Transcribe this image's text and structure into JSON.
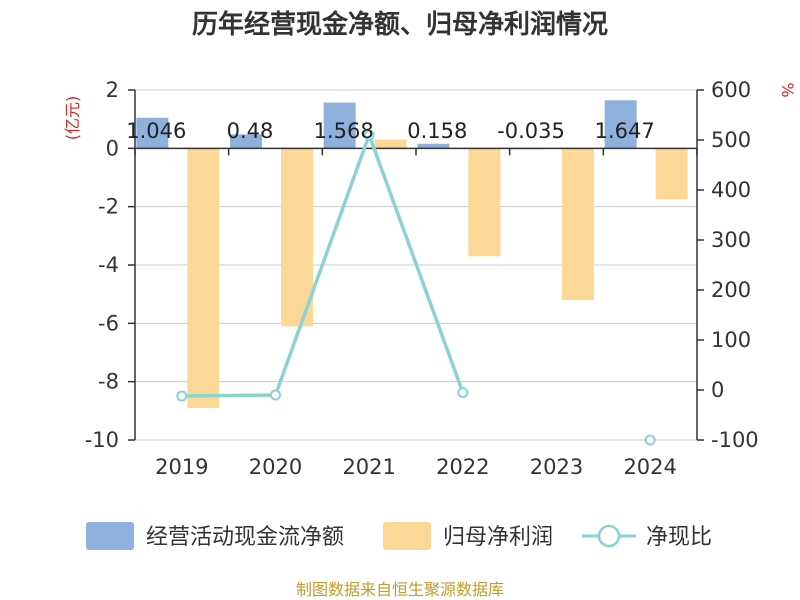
{
  "title": "历年经营现金净额、归母净利润情况",
  "source": "制图数据来自恒生聚源数据库",
  "chart_data": {
    "type": "bar",
    "categories": [
      "2019",
      "2020",
      "2021",
      "2022",
      "2023",
      "2024"
    ],
    "series": [
      {
        "name": "经营活动现金流净额",
        "axis": "left",
        "kind": "bar",
        "color": "#8eb0dd",
        "values": [
          1.046,
          0.48,
          1.568,
          0.158,
          -0.035,
          1.647
        ],
        "labels": [
          "1.046",
          "0.48",
          "1.568",
          "0.158",
          "-0.035",
          "1.647"
        ]
      },
      {
        "name": "归母净利润",
        "axis": "left",
        "kind": "bar",
        "color": "#fcd796",
        "values": [
          -8.9,
          -6.1,
          0.3,
          -3.7,
          -5.2,
          -1.75
        ]
      },
      {
        "name": "净现比",
        "axis": "right",
        "kind": "line",
        "color": "#89d3d3",
        "values": [
          -12,
          -10,
          510,
          -5,
          null,
          -100
        ]
      }
    ],
    "y_left": {
      "unit": "(亿元)",
      "min": -10,
      "max": 2,
      "ticks": [
        "2",
        "0",
        "-2",
        "-4",
        "-6",
        "-8",
        "-10"
      ]
    },
    "y_right": {
      "unit": "%",
      "min": -100,
      "max": 600,
      "ticks": [
        "600",
        "500",
        "400",
        "300",
        "200",
        "100",
        "0",
        "-100"
      ]
    },
    "grid": true,
    "legend_position": "bottom"
  }
}
